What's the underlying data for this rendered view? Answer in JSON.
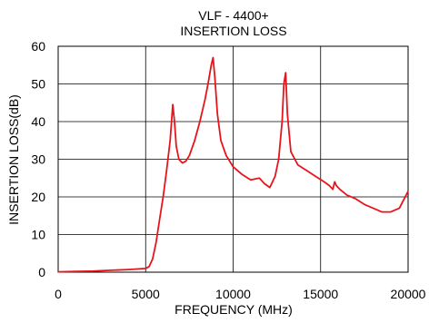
{
  "chart_data": {
    "type": "line",
    "title": "VLF - 4400+",
    "subtitle": "INSERTION LOSS",
    "xlabel": "FREQUENCY (MHz)",
    "ylabel": "INSERTION LOSS(dB)",
    "xlim": [
      0,
      20000
    ],
    "ylim": [
      0,
      60
    ],
    "xticks": [
      0,
      5000,
      10000,
      15000,
      20000
    ],
    "yticks": [
      0,
      10,
      20,
      30,
      40,
      50,
      60
    ],
    "grid": true,
    "series": [
      {
        "color": "#e8141b",
        "x": [
          0,
          1000,
          2000,
          3000,
          4000,
          5000,
          5200,
          5400,
          5600,
          5800,
          6000,
          6200,
          6400,
          6550,
          6650,
          6750,
          6900,
          7100,
          7300,
          7500,
          7800,
          8100,
          8400,
          8600,
          8750,
          8850,
          8950,
          9100,
          9300,
          9600,
          10000,
          10500,
          11000,
          11500,
          11800,
          12100,
          12400,
          12600,
          12800,
          12900,
          13000,
          13100,
          13300,
          13700,
          14200,
          14700,
          15200,
          15500,
          15700,
          15800,
          15900,
          16100,
          16500,
          17000,
          17500,
          18000,
          18500,
          19000,
          19500,
          20000
        ],
        "y": [
          0.1,
          0.2,
          0.3,
          0.5,
          0.7,
          1.0,
          1.5,
          3.5,
          8,
          14,
          20,
          27,
          35,
          44.5,
          40,
          33.5,
          30,
          29,
          29.5,
          31,
          35,
          40,
          46,
          51,
          55,
          57,
          52,
          42,
          35,
          31,
          28,
          26,
          24.5,
          25,
          23.5,
          22.5,
          25.5,
          30,
          40,
          50,
          53,
          42,
          32,
          28.5,
          27,
          25.5,
          24,
          23,
          22,
          24,
          23,
          22,
          20.5,
          19.5,
          18,
          17,
          16,
          16,
          17,
          21.5
        ]
      }
    ]
  }
}
